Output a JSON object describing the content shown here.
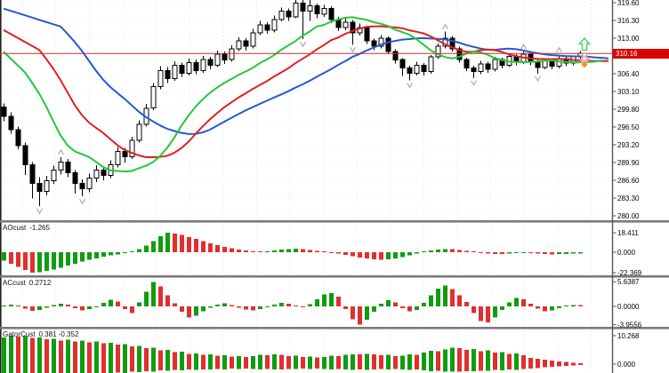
{
  "colors": {
    "bull": "#ffffff",
    "bear": "#000000",
    "candle_outline": "#000000",
    "jaw_blue": "#2757d1",
    "teeth_red": "#e02020",
    "lips_green": "#22c93a",
    "hist_up": "#0f9d0f",
    "hist_down": "#e22e2e",
    "price_line": "#cc2f2f",
    "price_tag_bg": "#dd0202",
    "fractal": "#a9a9b5",
    "grid_v": "#dfdfe8",
    "grid_h": "#ececf2",
    "separator": "#7a7a7a",
    "axis_line": "#555555",
    "buy_arrow": "#52d169",
    "sell_arrow": "#f49090",
    "diamond": "#f68b1f"
  },
  "panels": {
    "ao": {
      "name": "AOcust",
      "value": "-1.265"
    },
    "ac": {
      "name": "ACcust",
      "value": "0.2712"
    },
    "gator": {
      "name": "GatorCust",
      "value": "0.381 -0.352"
    }
  },
  "chart_data": {
    "type": "candlestick",
    "current_price": 310.16,
    "current_price_label": "310.16",
    "ylim": [
      279.2,
      320.1
    ],
    "y_axis_ticks": [
      "319.60",
      "316.30",
      "313.00",
      "306.40",
      "303.10",
      "299.80",
      "296.50",
      "293.20",
      "289.90",
      "286.60",
      "283.30",
      "280.00"
    ],
    "candles": [
      [
        300.2,
        300.9,
        297.6,
        298.5
      ],
      [
        298.5,
        299.2,
        295.3,
        296.0
      ],
      [
        296.0,
        296.6,
        292.4,
        293.0
      ],
      [
        293.0,
        293.6,
        287.6,
        289.5
      ],
      [
        289.5,
        290.0,
        283.2,
        286.0
      ],
      [
        286.0,
        287.2,
        281.8,
        284.5
      ],
      [
        284.5,
        287.4,
        283.8,
        286.5
      ],
      [
        286.5,
        289.3,
        285.9,
        288.5
      ],
      [
        288.5,
        290.9,
        287.7,
        290.0
      ],
      [
        290.0,
        290.6,
        287.2,
        288.0
      ],
      [
        288.0,
        288.5,
        284.1,
        286.0
      ],
      [
        286.0,
        286.8,
        283.6,
        285.0
      ],
      [
        285.0,
        287.8,
        284.4,
        287.0
      ],
      [
        287.0,
        289.4,
        286.3,
        288.5
      ],
      [
        288.5,
        289.0,
        286.6,
        287.5
      ],
      [
        287.5,
        290.3,
        287.0,
        289.5
      ],
      [
        289.5,
        292.8,
        289.0,
        292.0
      ],
      [
        292.0,
        292.6,
        289.9,
        291.0
      ],
      [
        291.0,
        294.7,
        290.6,
        294.0
      ],
      [
        294.0,
        297.7,
        293.6,
        297.0
      ],
      [
        297.0,
        300.8,
        296.6,
        300.0
      ],
      [
        300.0,
        304.7,
        299.6,
        304.0
      ],
      [
        304.0,
        307.8,
        303.5,
        307.0
      ],
      [
        307.0,
        307.6,
        304.7,
        305.5
      ],
      [
        305.5,
        308.7,
        305.1,
        308.0
      ],
      [
        308.0,
        308.5,
        305.8,
        306.5
      ],
      [
        306.5,
        309.2,
        306.1,
        308.5
      ],
      [
        308.5,
        309.0,
        306.3,
        307.0
      ],
      [
        307.0,
        309.7,
        306.6,
        309.0
      ],
      [
        309.0,
        309.5,
        307.2,
        308.0
      ],
      [
        308.0,
        310.7,
        307.6,
        310.0
      ],
      [
        310.0,
        310.5,
        308.2,
        309.0
      ],
      [
        309.0,
        311.7,
        308.6,
        311.0
      ],
      [
        311.0,
        313.2,
        310.6,
        312.5
      ],
      [
        312.5,
        313.0,
        310.7,
        311.5
      ],
      [
        311.5,
        314.7,
        311.1,
        314.0
      ],
      [
        314.0,
        316.2,
        313.6,
        315.5
      ],
      [
        315.5,
        316.0,
        313.8,
        314.5
      ],
      [
        314.5,
        317.2,
        314.1,
        316.5
      ],
      [
        316.5,
        318.7,
        316.1,
        318.0
      ],
      [
        318.0,
        318.5,
        316.2,
        317.0
      ],
      [
        317.0,
        321.3,
        316.7,
        319.5
      ],
      [
        319.5,
        320.3,
        312.8,
        318.0
      ],
      [
        318.0,
        320.8,
        316.2,
        319.0
      ],
      [
        319.0,
        319.4,
        316.7,
        317.5
      ],
      [
        317.5,
        319.2,
        317.0,
        318.5
      ],
      [
        318.5,
        318.9,
        315.8,
        316.5
      ],
      [
        316.5,
        317.0,
        314.3,
        315.0
      ],
      [
        315.0,
        316.7,
        314.5,
        316.0
      ],
      [
        316.0,
        316.4,
        311.8,
        314.0
      ],
      [
        314.0,
        315.7,
        313.5,
        315.0
      ],
      [
        315.0,
        315.3,
        311.9,
        312.5
      ],
      [
        312.5,
        312.9,
        310.8,
        311.5
      ],
      [
        311.5,
        313.6,
        311.1,
        313.0
      ],
      [
        313.0,
        313.3,
        310.0,
        310.5
      ],
      [
        310.5,
        310.9,
        308.3,
        309.0
      ],
      [
        309.0,
        309.3,
        306.0,
        307.5
      ],
      [
        307.5,
        307.9,
        305.2,
        306.5
      ],
      [
        306.5,
        308.6,
        306.1,
        308.0
      ],
      [
        308.0,
        308.4,
        306.1,
        306.8
      ],
      [
        306.8,
        309.9,
        306.4,
        309.5
      ],
      [
        309.5,
        312.0,
        309.1,
        311.5
      ],
      [
        311.5,
        314.2,
        311.1,
        313.0
      ],
      [
        313.0,
        313.4,
        310.5,
        311.0
      ],
      [
        311.0,
        311.4,
        308.5,
        309.0
      ],
      [
        309.0,
        309.4,
        306.9,
        307.5
      ],
      [
        307.5,
        307.9,
        305.6,
        306.8
      ],
      [
        306.8,
        308.8,
        306.3,
        308.2
      ],
      [
        308.2,
        308.6,
        306.6,
        307.2
      ],
      [
        307.2,
        309.5,
        306.8,
        309.0
      ],
      [
        309.0,
        309.4,
        307.4,
        308.0
      ],
      [
        308.0,
        310.1,
        307.6,
        309.6
      ],
      [
        309.6,
        310.0,
        308.0,
        308.6
      ],
      [
        308.6,
        310.5,
        308.2,
        310.0
      ],
      [
        310.0,
        310.4,
        308.0,
        308.6
      ],
      [
        308.6,
        309.0,
        306.4,
        307.6
      ],
      [
        307.6,
        309.3,
        307.2,
        308.8
      ],
      [
        308.8,
        309.2,
        307.2,
        307.8
      ],
      [
        307.8,
        309.9,
        307.4,
        309.2
      ],
      [
        309.2,
        309.5,
        307.8,
        308.4
      ],
      [
        308.4,
        309.8,
        308.0,
        309.6
      ],
      [
        309.6,
        310.6,
        309.1,
        310.16
      ]
    ],
    "overlays": [
      {
        "name": "alligator-jaw",
        "period": 13,
        "shift": 8,
        "seed": 316.5,
        "color": "#2757d1"
      },
      {
        "name": "alligator-teeth",
        "period": 8,
        "shift": 5,
        "seed": 312.5,
        "color": "#e02020"
      },
      {
        "name": "alligator-lips",
        "period": 5,
        "shift": 3,
        "seed": 308.5,
        "color": "#22c93a"
      }
    ],
    "markers": [
      {
        "type": "up-arrow",
        "bar": 81,
        "price": 313.0
      },
      {
        "type": "down-arrow",
        "bar": 81,
        "price": 308.0
      },
      {
        "type": "diamond",
        "bar": 81,
        "price": 308.1
      }
    ],
    "subcharts": [
      {
        "name": "AOcust",
        "current": -1.265,
        "range": [
          -22.369,
          18.411
        ],
        "axis_labels": [
          "18.411",
          "0.000",
          "-22.369"
        ],
        "values": [
          -9.0,
          -12.5,
          -16.0,
          -19.5,
          -22.37,
          -21.8,
          -20.5,
          -18.8,
          -16.8,
          -14.6,
          -12.4,
          -10.3,
          -8.4,
          -6.6,
          -5.0,
          -3.6,
          -2.4,
          -1.2,
          0.3,
          3.0,
          6.5,
          10.5,
          15.0,
          18.41,
          17.6,
          16.2,
          14.4,
          12.4,
          10.4,
          8.5,
          6.7,
          5.1,
          3.7,
          2.5,
          1.5,
          0.8,
          0.6,
          1.0,
          1.8,
          2.6,
          3.1,
          3.3,
          3.0,
          2.3,
          1.4,
          0.5,
          -0.4,
          -1.5,
          -2.8,
          -4.2,
          -5.6,
          -6.8,
          -7.7,
          -8.1,
          -7.8,
          -6.8,
          -5.2,
          -3.4,
          -1.6,
          0.1,
          1.5,
          2.6,
          3.1,
          2.9,
          2.2,
          1.2,
          0.2,
          -0.7,
          -1.4,
          -1.8,
          -1.9,
          -1.6,
          -1.1,
          -0.8,
          -1.0,
          -1.5,
          -2.0,
          -2.2,
          -2.0,
          -1.7,
          -1.4,
          -1.265
        ]
      },
      {
        "name": "ACcust",
        "current": 0.2712,
        "range": [
          -3.9556,
          5.6387
        ],
        "axis_labels": [
          "5.6387",
          "0.0000",
          "-3.9556"
        ],
        "values": [
          0.2,
          0.45,
          0.15,
          -0.5,
          -1.0,
          -0.8,
          -0.3,
          0.3,
          0.65,
          0.4,
          -0.4,
          -0.9,
          -0.55,
          -0.15,
          0.8,
          1.5,
          1.1,
          -0.6,
          -1.4,
          0.9,
          3.4,
          5.64,
          4.6,
          2.6,
          0.7,
          -1.2,
          -2.4,
          -2.0,
          -1.1,
          -0.3,
          0.4,
          0.7,
          0.3,
          -0.3,
          -0.7,
          -0.9,
          -0.6,
          -0.2,
          0.4,
          0.8,
          0.6,
          0.2,
          -0.2,
          0.5,
          1.6,
          2.8,
          3.1,
          2.2,
          -0.6,
          -2.8,
          -3.96,
          -2.9,
          -1.2,
          0.6,
          1.4,
          0.9,
          -0.4,
          -1.1,
          -0.8,
          0.8,
          2.6,
          4.1,
          4.8,
          4.0,
          2.6,
          1.0,
          -1.4,
          -3.2,
          -3.5,
          -2.4,
          -0.8,
          0.9,
          1.9,
          1.6,
          0.6,
          -0.5,
          -1.1,
          -0.9,
          -0.4,
          0.1,
          0.35,
          0.2712
        ]
      },
      {
        "name": "GatorCust",
        "current": "0.381 -0.352",
        "range_top": 10.268,
        "axis_labels": [
          "10.268",
          "0.000"
        ],
        "upper": [
          9.6,
          10.268,
          9.9,
          10.05,
          9.4,
          9.65,
          8.9,
          9.1,
          8.5,
          8.75,
          8.2,
          8.45,
          7.9,
          8.1,
          7.5,
          7.7,
          7.0,
          7.2,
          6.4,
          6.6,
          5.7,
          5.9,
          5.0,
          5.2,
          4.3,
          4.5,
          3.7,
          3.9,
          3.3,
          3.5,
          3.0,
          3.15,
          2.7,
          2.85,
          2.5,
          2.9,
          3.3,
          3.15,
          3.5,
          3.3,
          2.9,
          3.05,
          2.6,
          2.75,
          2.4,
          2.6,
          3.0,
          2.85,
          3.3,
          3.6,
          3.45,
          3.7,
          3.5,
          3.2,
          3.35,
          2.9,
          3.1,
          3.5,
          3.35,
          4.1,
          4.8,
          4.6,
          5.3,
          5.9,
          5.7,
          5.2,
          5.4,
          4.7,
          4.9,
          4.2,
          4.4,
          3.7,
          3.9,
          3.2,
          2.2,
          1.9,
          1.6,
          1.3,
          1.0,
          0.8,
          0.55,
          0.381
        ],
        "lower": [
          -4.6,
          -4.85,
          -4.5,
          -4.7,
          -4.3,
          -4.5,
          -4.1,
          -4.3,
          -3.9,
          -4.1,
          -3.8,
          -3.95,
          -3.6,
          -3.75,
          -3.4,
          -3.55,
          -3.1,
          -3.25,
          -2.8,
          -2.95,
          -2.5,
          -2.65,
          -2.3,
          -2.45,
          -2.1,
          -2.25,
          -1.95,
          -2.1,
          -1.85,
          -2.0,
          -1.75,
          -1.9,
          -1.65,
          -1.8,
          -1.6,
          -1.75,
          -1.9,
          -1.8,
          -2.0,
          -1.9,
          -1.7,
          -1.8,
          -1.6,
          -1.7,
          -1.55,
          -1.7,
          -1.85,
          -1.75,
          -1.95,
          -2.05,
          -1.95,
          -2.1,
          -1.95,
          -1.8,
          -1.9,
          -1.75,
          -1.9,
          -2.1,
          -2.0,
          -2.3,
          -2.55,
          -2.45,
          -2.7,
          -2.8,
          -2.7,
          -2.5,
          -2.6,
          -2.35,
          -2.45,
          -2.15,
          -2.25,
          -1.95,
          -2.05,
          -1.8,
          -1.6,
          -1.4,
          -1.2,
          -1.0,
          -0.85,
          -0.7,
          -0.5,
          -0.352
        ]
      }
    ]
  }
}
